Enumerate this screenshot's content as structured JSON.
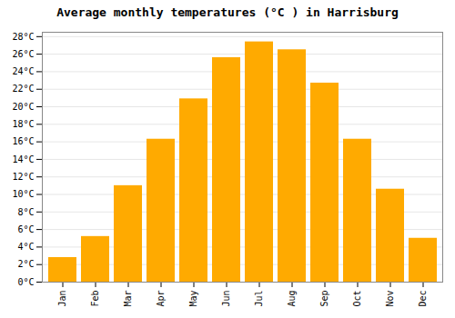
{
  "chart_data": {
    "type": "bar",
    "title": "Average monthly temperatures (°C ) in Harrisburg",
    "categories": [
      "Jan",
      "Feb",
      "Mar",
      "Apr",
      "May",
      "Jun",
      "Jul",
      "Aug",
      "Sep",
      "Oct",
      "Nov",
      "Dec"
    ],
    "values": [
      2.8,
      5.2,
      11.0,
      16.3,
      20.9,
      25.6,
      27.4,
      26.5,
      22.7,
      16.3,
      10.6,
      5.0
    ],
    "color": "#FFAA00",
    "ylim": [
      0,
      28.5
    ],
    "yticks": [
      {
        "value": 0,
        "label": "0°C"
      },
      {
        "value": 2,
        "label": "2°C"
      },
      {
        "value": 4,
        "label": "4°C"
      },
      {
        "value": 6,
        "label": "6°C"
      },
      {
        "value": 8,
        "label": "8°C"
      },
      {
        "value": 10,
        "label": "10°C"
      },
      {
        "value": 12,
        "label": "12°C"
      },
      {
        "value": 14,
        "label": "14°C"
      },
      {
        "value": 16,
        "label": "16°C"
      },
      {
        "value": 18,
        "label": "18°C"
      },
      {
        "value": 20,
        "label": "20°C"
      },
      {
        "value": 22,
        "label": "22°C"
      },
      {
        "value": 24,
        "label": "24°C"
      },
      {
        "value": 26,
        "label": "26°C"
      },
      {
        "value": 28,
        "label": "28°C"
      }
    ],
    "grid": true
  }
}
